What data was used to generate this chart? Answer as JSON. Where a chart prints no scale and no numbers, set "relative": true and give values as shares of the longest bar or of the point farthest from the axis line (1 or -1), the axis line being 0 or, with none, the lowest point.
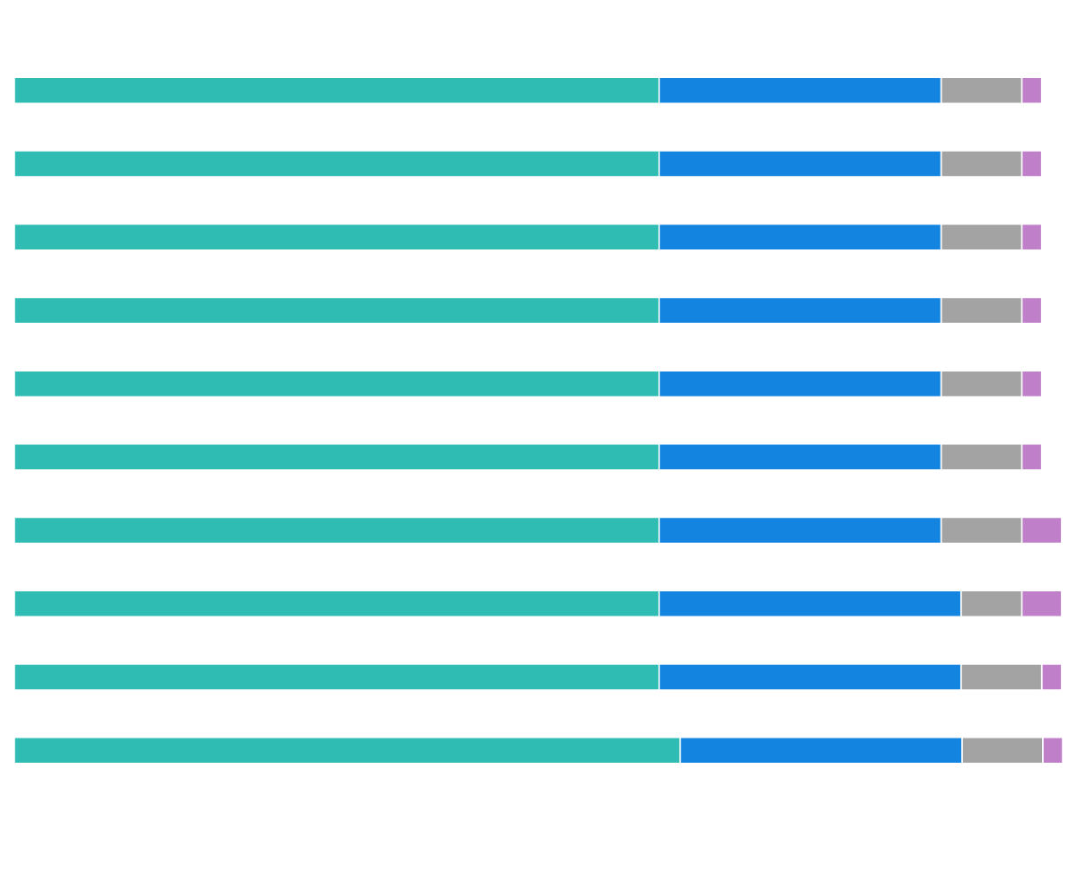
{
  "chart_data": {
    "type": "bar",
    "orientation": "horizontal",
    "stacked": true,
    "relative": true,
    "categories": [
      null,
      null,
      null,
      null,
      null,
      null,
      null,
      null,
      null,
      null
    ],
    "series": [
      {
        "color": "#2fbcb2",
        "values": [
          0.615,
          0.615,
          0.615,
          0.615,
          0.615,
          0.615,
          0.615,
          0.615,
          0.615,
          0.635
        ]
      },
      {
        "color": "#1385e0",
        "values": [
          0.269,
          0.269,
          0.269,
          0.269,
          0.269,
          0.269,
          0.269,
          0.288,
          0.288,
          0.269
        ]
      },
      {
        "color": "#a3a3a3",
        "values": [
          0.077,
          0.077,
          0.077,
          0.077,
          0.077,
          0.077,
          0.077,
          0.058,
          0.077,
          0.077
        ]
      },
      {
        "color": "#bf80c9",
        "values": [
          0.019,
          0.019,
          0.019,
          0.019,
          0.019,
          0.019,
          0.038,
          0.038,
          0.019,
          0.019
        ]
      }
    ]
  }
}
